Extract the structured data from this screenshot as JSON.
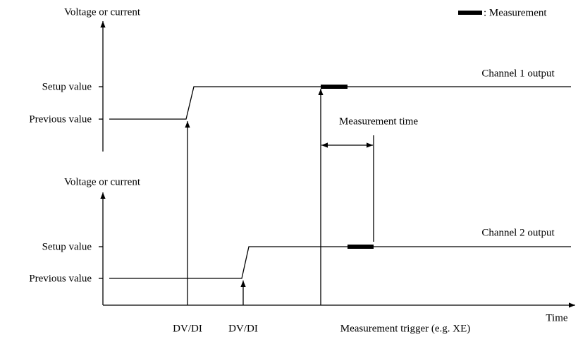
{
  "legend": {
    "label": ": Measurement"
  },
  "channels": [
    {
      "axis_label": "Voltage or current",
      "setup_label": "Setup value",
      "previous_label": "Previous value",
      "output_label": "Channel 1 output"
    },
    {
      "axis_label": "Voltage or current",
      "setup_label": "Setup value",
      "previous_label": "Previous value",
      "output_label": "Channel 2 output"
    }
  ],
  "measurement_time": "Measurement time",
  "x_axis_label": "Time",
  "events": [
    "DV/DI",
    "DV/DI",
    "Measurement trigger (e.g. XE)"
  ]
}
